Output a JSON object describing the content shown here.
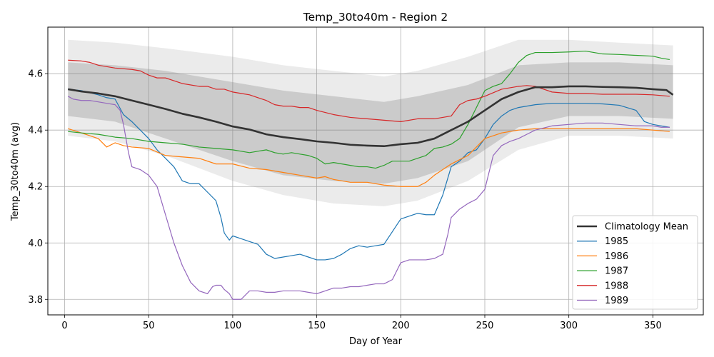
{
  "chart_data": {
    "type": "line",
    "title": "Temp_30to40m - Region 2",
    "xlabel": "Day of Year",
    "ylabel": "Temp_30to40m (avg)",
    "xlim": [
      -10,
      380
    ],
    "ylim": [
      3.745,
      4.765
    ],
    "xticks": [
      0,
      50,
      100,
      150,
      200,
      250,
      300,
      350
    ],
    "yticks": [
      3.8,
      4.0,
      4.2,
      4.4,
      4.6
    ],
    "grid": true,
    "legend_position": "lower right",
    "band_outer": {
      "x": [
        2,
        30,
        60,
        100,
        130,
        160,
        190,
        210,
        240,
        270,
        300,
        330,
        362
      ],
      "upper": [
        4.72,
        4.71,
        4.69,
        4.66,
        4.63,
        4.61,
        4.59,
        4.61,
        4.66,
        4.72,
        4.72,
        4.71,
        4.7
      ],
      "lower": [
        4.38,
        4.36,
        4.31,
        4.22,
        4.17,
        4.14,
        4.13,
        4.15,
        4.22,
        4.33,
        4.38,
        4.38,
        4.37
      ]
    },
    "band_inner": {
      "x": [
        2,
        30,
        60,
        100,
        130,
        160,
        190,
        210,
        240,
        270,
        300,
        330,
        362
      ],
      "upper": [
        4.64,
        4.63,
        4.61,
        4.57,
        4.54,
        4.52,
        4.5,
        4.52,
        4.56,
        4.63,
        4.64,
        4.64,
        4.63
      ],
      "lower": [
        4.45,
        4.43,
        4.37,
        4.29,
        4.24,
        4.22,
        4.21,
        4.23,
        4.29,
        4.41,
        4.45,
        4.45,
        4.44
      ]
    },
    "mean": {
      "name": "Climatology Mean",
      "color": "#333333",
      "x": [
        2,
        10,
        20,
        30,
        40,
        50,
        60,
        70,
        80,
        90,
        100,
        110,
        120,
        130,
        140,
        150,
        160,
        170,
        180,
        190,
        200,
        210,
        220,
        230,
        240,
        250,
        260,
        270,
        280,
        290,
        300,
        310,
        320,
        330,
        340,
        350,
        358,
        362
      ],
      "y": [
        4.545,
        4.537,
        4.53,
        4.52,
        4.505,
        4.49,
        4.475,
        4.458,
        4.445,
        4.43,
        4.413,
        4.402,
        4.385,
        4.375,
        4.368,
        4.36,
        4.355,
        4.348,
        4.345,
        4.343,
        4.35,
        4.355,
        4.37,
        4.4,
        4.43,
        4.47,
        4.51,
        4.535,
        4.552,
        4.552,
        4.555,
        4.555,
        4.553,
        4.552,
        4.55,
        4.545,
        4.542,
        4.525
      ]
    },
    "series": [
      {
        "name": "1985",
        "color": "#1f77b4",
        "x": [
          2,
          10,
          20,
          25,
          30,
          35,
          40,
          45,
          50,
          55,
          60,
          65,
          70,
          75,
          80,
          85,
          90,
          93,
          95,
          98,
          100,
          105,
          110,
          115,
          120,
          125,
          130,
          135,
          140,
          145,
          150,
          155,
          160,
          165,
          170,
          175,
          180,
          185,
          190,
          195,
          200,
          205,
          210,
          215,
          220,
          225,
          230,
          235,
          240,
          245,
          250,
          255,
          260,
          265,
          270,
          280,
          290,
          300,
          310,
          320,
          330,
          340,
          345,
          350,
          355,
          360
        ],
        "y": [
          4.545,
          4.54,
          4.525,
          4.515,
          4.51,
          4.455,
          4.43,
          4.4,
          4.37,
          4.33,
          4.3,
          4.27,
          4.22,
          4.21,
          4.21,
          4.18,
          4.15,
          4.09,
          4.035,
          4.01,
          4.025,
          4.015,
          4.005,
          3.995,
          3.96,
          3.945,
          3.95,
          3.955,
          3.96,
          3.95,
          3.94,
          3.94,
          3.945,
          3.96,
          3.98,
          3.99,
          3.985,
          3.99,
          3.995,
          4.04,
          4.085,
          4.095,
          4.105,
          4.1,
          4.1,
          4.17,
          4.27,
          4.29,
          4.32,
          4.33,
          4.37,
          4.42,
          4.45,
          4.47,
          4.48,
          4.49,
          4.495,
          4.495,
          4.495,
          4.493,
          4.488,
          4.47,
          4.43,
          4.42,
          4.415,
          4.41
        ]
      },
      {
        "name": "1986",
        "color": "#ff7f0e",
        "x": [
          2,
          10,
          15,
          20,
          25,
          30,
          35,
          40,
          50,
          60,
          70,
          80,
          90,
          100,
          110,
          120,
          130,
          140,
          150,
          155,
          160,
          165,
          170,
          175,
          180,
          190,
          200,
          210,
          215,
          220,
          225,
          230,
          240,
          250,
          260,
          270,
          280,
          290,
          300,
          310,
          320,
          330,
          340,
          350,
          360
        ],
        "y": [
          4.405,
          4.39,
          4.38,
          4.37,
          4.34,
          4.355,
          4.345,
          4.34,
          4.335,
          4.31,
          4.305,
          4.3,
          4.28,
          4.28,
          4.265,
          4.26,
          4.25,
          4.24,
          4.23,
          4.235,
          4.225,
          4.22,
          4.215,
          4.215,
          4.215,
          4.205,
          4.2,
          4.2,
          4.215,
          4.24,
          4.26,
          4.28,
          4.31,
          4.37,
          4.39,
          4.4,
          4.405,
          4.405,
          4.405,
          4.405,
          4.405,
          4.405,
          4.405,
          4.4,
          4.395
        ]
      },
      {
        "name": "1987",
        "color": "#2ca02c",
        "x": [
          2,
          10,
          20,
          30,
          40,
          50,
          60,
          70,
          80,
          90,
          100,
          105,
          110,
          115,
          120,
          125,
          130,
          135,
          140,
          145,
          150,
          155,
          160,
          165,
          170,
          175,
          180,
          185,
          190,
          195,
          200,
          205,
          210,
          215,
          220,
          225,
          230,
          235,
          240,
          245,
          250,
          255,
          260,
          265,
          270,
          275,
          280,
          290,
          300,
          310,
          320,
          330,
          340,
          350,
          355,
          360
        ],
        "y": [
          4.395,
          4.39,
          4.385,
          4.375,
          4.37,
          4.36,
          4.355,
          4.35,
          4.34,
          4.335,
          4.33,
          4.325,
          4.32,
          4.325,
          4.33,
          4.32,
          4.315,
          4.32,
          4.315,
          4.31,
          4.3,
          4.28,
          4.285,
          4.28,
          4.275,
          4.27,
          4.27,
          4.265,
          4.275,
          4.29,
          4.29,
          4.29,
          4.3,
          4.31,
          4.335,
          4.34,
          4.35,
          4.37,
          4.42,
          4.48,
          4.54,
          4.555,
          4.565,
          4.6,
          4.64,
          4.665,
          4.675,
          4.675,
          4.677,
          4.68,
          4.67,
          4.668,
          4.665,
          4.662,
          4.655,
          4.65
        ]
      },
      {
        "name": "1988",
        "color": "#d62728",
        "x": [
          2,
          10,
          15,
          20,
          25,
          30,
          40,
          45,
          50,
          55,
          60,
          65,
          70,
          80,
          85,
          90,
          95,
          100,
          105,
          110,
          115,
          120,
          125,
          130,
          135,
          140,
          145,
          150,
          160,
          170,
          180,
          190,
          200,
          210,
          220,
          230,
          235,
          240,
          245,
          250,
          260,
          270,
          275,
          280,
          290,
          300,
          310,
          320,
          330,
          340,
          350,
          360
        ],
        "y": [
          4.648,
          4.645,
          4.64,
          4.63,
          4.625,
          4.62,
          4.615,
          4.61,
          4.595,
          4.585,
          4.585,
          4.575,
          4.565,
          4.555,
          4.555,
          4.545,
          4.545,
          4.535,
          4.53,
          4.525,
          4.515,
          4.505,
          4.49,
          4.485,
          4.485,
          4.48,
          4.48,
          4.47,
          4.455,
          4.445,
          4.44,
          4.435,
          4.43,
          4.44,
          4.44,
          4.45,
          4.49,
          4.505,
          4.51,
          4.52,
          4.545,
          4.555,
          4.558,
          4.555,
          4.535,
          4.53,
          4.53,
          4.527,
          4.527,
          4.527,
          4.525,
          4.52
        ]
      },
      {
        "name": "1989",
        "color": "#9467bd",
        "x": [
          2,
          5,
          10,
          15,
          20,
          25,
          30,
          33,
          35,
          38,
          40,
          45,
          50,
          55,
          60,
          65,
          70,
          75,
          80,
          85,
          88,
          90,
          93,
          95,
          98,
          100,
          105,
          110,
          115,
          120,
          125,
          130,
          135,
          140,
          145,
          150,
          155,
          160,
          165,
          170,
          175,
          180,
          185,
          190,
          195,
          200,
          205,
          210,
          215,
          220,
          225,
          228,
          230,
          235,
          240,
          245,
          250,
          255,
          260,
          265,
          270,
          275,
          280,
          290,
          300,
          310,
          320,
          330,
          340,
          350,
          355,
          360
        ],
        "y": [
          4.52,
          4.51,
          4.505,
          4.505,
          4.5,
          4.495,
          4.49,
          4.47,
          4.42,
          4.32,
          4.27,
          4.26,
          4.24,
          4.2,
          4.1,
          4.0,
          3.92,
          3.86,
          3.83,
          3.82,
          3.845,
          3.85,
          3.85,
          3.835,
          3.82,
          3.8,
          3.8,
          3.83,
          3.83,
          3.825,
          3.825,
          3.83,
          3.83,
          3.83,
          3.825,
          3.82,
          3.83,
          3.84,
          3.84,
          3.845,
          3.845,
          3.85,
          3.855,
          3.855,
          3.87,
          3.93,
          3.94,
          3.94,
          3.94,
          3.945,
          3.96,
          4.03,
          4.09,
          4.12,
          4.14,
          4.155,
          4.19,
          4.31,
          4.345,
          4.36,
          4.37,
          4.385,
          4.4,
          4.415,
          4.42,
          4.425,
          4.425,
          4.42,
          4.415,
          4.415,
          4.41,
          4.41
        ]
      }
    ]
  }
}
